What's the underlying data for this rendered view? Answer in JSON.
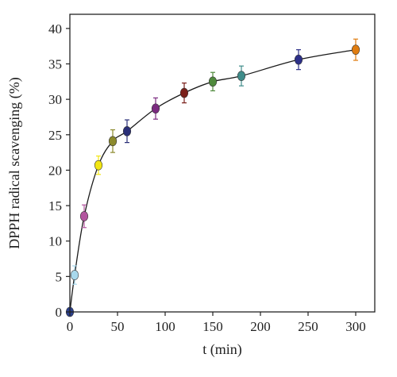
{
  "chart_data": {
    "type": "scatter",
    "xlabel": "t (min)",
    "ylabel": "DPPH radical scavenging (%)",
    "xlim": [
      0,
      320
    ],
    "ylim": [
      0,
      42
    ],
    "x_ticks": [
      0,
      50,
      100,
      150,
      200,
      250,
      300
    ],
    "y_ticks": [
      0,
      5,
      10,
      15,
      20,
      25,
      30,
      35,
      40
    ],
    "x_tick_labels": [
      "0",
      "50",
      "100",
      "150",
      "200",
      "250",
      "300"
    ],
    "y_tick_labels": [
      "0",
      "5",
      "10",
      "15",
      "20",
      "25",
      "30",
      "35",
      "40"
    ],
    "grid": false,
    "legend": "none",
    "series": [
      {
        "x": [
          0,
          5,
          15,
          30,
          45,
          60,
          90,
          120,
          150,
          180,
          240,
          300
        ],
        "y": [
          0,
          5.2,
          13.5,
          20.7,
          24.1,
          25.5,
          28.7,
          30.9,
          32.5,
          33.3,
          35.6,
          37.0
        ],
        "error": [
          0,
          1.3,
          1.6,
          1.3,
          1.6,
          1.6,
          1.5,
          1.4,
          1.3,
          1.4,
          1.4,
          1.5
        ],
        "colors": [
          "#2b3f8c",
          "#a8d8ec",
          "#b3559f",
          "#f2e614",
          "#8c8a2c",
          "#2a2f78",
          "#7b2a80",
          "#7a1f1a",
          "#4f8a3c",
          "#3f8c8a",
          "#2c2f88",
          "#e07d10"
        ],
        "fit_curve": true
      }
    ]
  }
}
